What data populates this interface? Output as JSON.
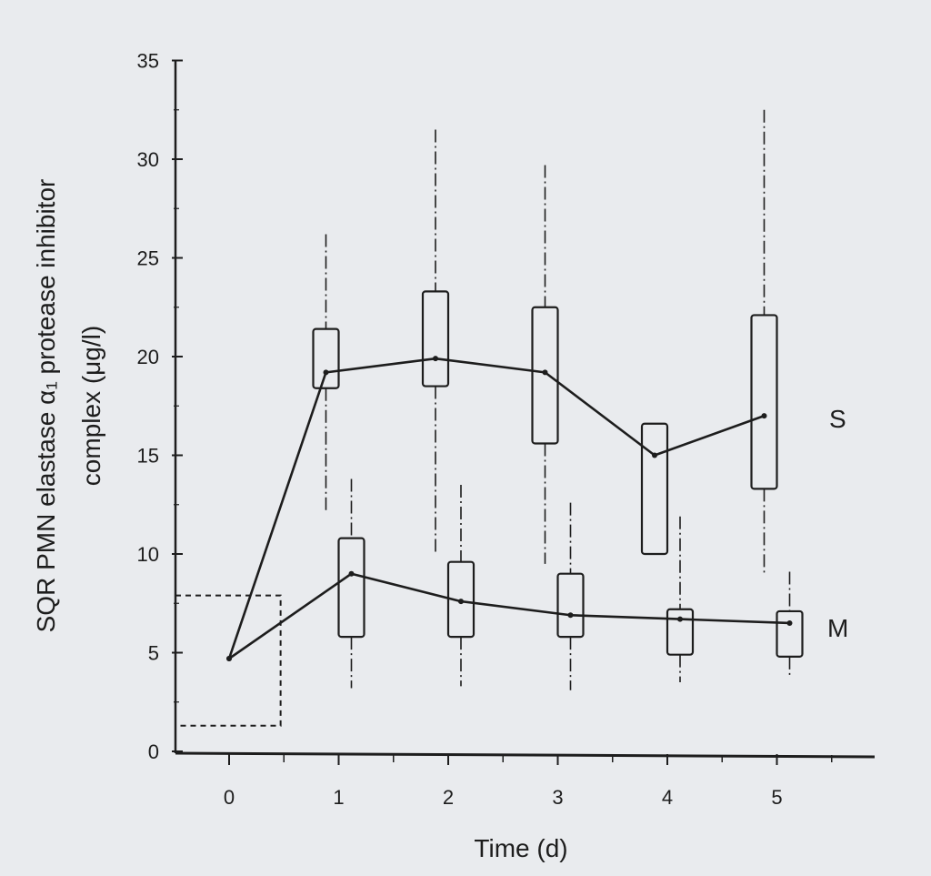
{
  "chart_data": {
    "type": "box",
    "xlabel": "Time (d)",
    "ylabel_line1": "SQR PMN elastase α₁ protease inhibitor",
    "ylabel_line2": "complex (μg/l)",
    "x_ticks": [
      "0",
      "1",
      "2",
      "3",
      "4",
      "5"
    ],
    "y_ticks": [
      "0",
      "5",
      "10",
      "15",
      "20",
      "25",
      "30",
      "35"
    ],
    "ylim": [
      0,
      35
    ],
    "xlim": [
      -0.5,
      5.8
    ],
    "reference_range": [
      1.3,
      7.9
    ],
    "series": [
      {
        "name": "S",
        "medians": [
          4.7,
          19.2,
          19.9,
          19.2,
          15.0,
          17.0
        ],
        "boxes": [
          {
            "x": 1,
            "whisker_low": 12.2,
            "q1": 18.4,
            "median": 19.2,
            "q3": 21.4,
            "whisker_high": 26.2
          },
          {
            "x": 2,
            "whisker_low": 10.0,
            "q1": 18.5,
            "median": 19.9,
            "q3": 23.3,
            "whisker_high": 31.5
          },
          {
            "x": 3,
            "whisker_low": 9.5,
            "q1": 15.6,
            "median": 19.2,
            "q3": 22.5,
            "whisker_high": 29.7
          },
          {
            "x": 4,
            "whisker_low": 10.0,
            "q1": 10.0,
            "median": 15.0,
            "q3": 16.6,
            "whisker_high": 16.6
          },
          {
            "x": 5,
            "whisker_low": 9.0,
            "q1": 13.3,
            "median": 17.0,
            "q3": 22.1,
            "whisker_high": 32.5
          }
        ]
      },
      {
        "name": "M",
        "medians": [
          4.7,
          9.0,
          7.6,
          6.9,
          6.7,
          6.5
        ],
        "boxes": [
          {
            "x": 1,
            "whisker_low": 3.2,
            "q1": 5.8,
            "median": 9.0,
            "q3": 10.8,
            "whisker_high": 13.8
          },
          {
            "x": 2,
            "whisker_low": 3.3,
            "q1": 5.8,
            "median": 7.6,
            "q3": 9.6,
            "whisker_high": 13.5
          },
          {
            "x": 3,
            "whisker_low": 3.1,
            "q1": 5.8,
            "median": 6.9,
            "q3": 9.0,
            "whisker_high": 12.6
          },
          {
            "x": 4,
            "whisker_low": 3.5,
            "q1": 4.9,
            "median": 6.7,
            "q3": 7.2,
            "whisker_high": 11.9
          },
          {
            "x": 5,
            "whisker_low": 3.7,
            "q1": 4.8,
            "median": 6.5,
            "q3": 7.1,
            "whisker_high": 9.1
          }
        ]
      }
    ]
  }
}
